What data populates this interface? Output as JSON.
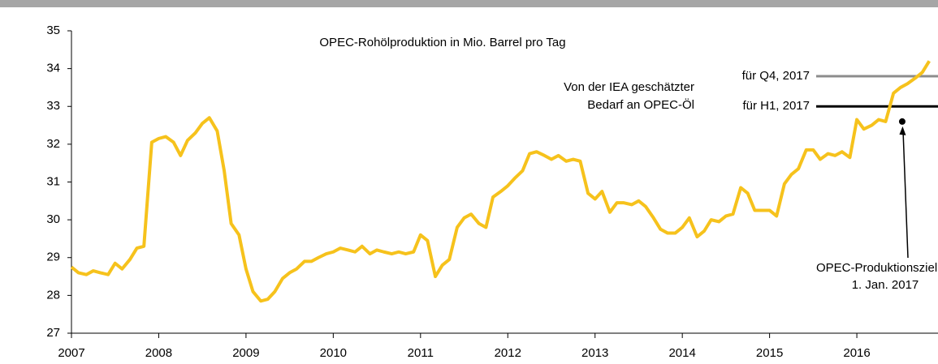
{
  "chart_data": {
    "type": "line",
    "title": "OPEC-Rohölproduktion in Mio. Barrel pro Tag",
    "xlim": [
      2007,
      2016.93
    ],
    "xticks": [
      2007,
      2008,
      2009,
      2010,
      2011,
      2012,
      2013,
      2014,
      2015,
      2016
    ],
    "ylim": [
      27,
      35
    ],
    "yticks": [
      27,
      28,
      29,
      30,
      31,
      32,
      33,
      34,
      35
    ],
    "series": [
      {
        "color": "#f6c21c",
        "x": [
          2007.0,
          2007.08,
          2007.17,
          2007.25,
          2007.33,
          2007.42,
          2007.5,
          2007.58,
          2007.67,
          2007.75,
          2007.83,
          2007.92,
          2008.0,
          2008.08,
          2008.17,
          2008.25,
          2008.33,
          2008.42,
          2008.5,
          2008.58,
          2008.67,
          2008.75,
          2008.83,
          2008.92,
          2009.0,
          2009.08,
          2009.17,
          2009.25,
          2009.33,
          2009.42,
          2009.5,
          2009.58,
          2009.67,
          2009.75,
          2009.83,
          2009.92,
          2010.0,
          2010.08,
          2010.17,
          2010.25,
          2010.33,
          2010.42,
          2010.5,
          2010.58,
          2010.67,
          2010.75,
          2010.83,
          2010.92,
          2011.0,
          2011.08,
          2011.17,
          2011.25,
          2011.33,
          2011.42,
          2011.5,
          2011.58,
          2011.67,
          2011.75,
          2011.83,
          2011.92,
          2012.0,
          2012.08,
          2012.17,
          2012.25,
          2012.33,
          2012.42,
          2012.5,
          2012.58,
          2012.67,
          2012.75,
          2012.83,
          2012.92,
          2013.0,
          2013.08,
          2013.17,
          2013.25,
          2013.33,
          2013.42,
          2013.5,
          2013.58,
          2013.67,
          2013.75,
          2013.83,
          2013.92,
          2014.0,
          2014.08,
          2014.17,
          2014.25,
          2014.33,
          2014.42,
          2014.5,
          2014.58,
          2014.67,
          2014.75,
          2014.83,
          2014.92,
          2015.0,
          2015.08,
          2015.17,
          2015.25,
          2015.33,
          2015.42,
          2015.5,
          2015.58,
          2015.67,
          2015.75,
          2015.83,
          2015.92,
          2016.0,
          2016.08,
          2016.17,
          2016.25,
          2016.33,
          2016.42,
          2016.5,
          2016.58,
          2016.67,
          2016.75,
          2016.83
        ],
        "values": [
          28.75,
          28.6,
          28.55,
          28.65,
          28.6,
          28.55,
          28.85,
          28.7,
          28.95,
          29.25,
          29.3,
          32.05,
          32.15,
          32.2,
          32.05,
          31.7,
          32.1,
          32.3,
          32.55,
          32.7,
          32.35,
          31.3,
          29.9,
          29.6,
          28.7,
          28.1,
          27.85,
          27.9,
          28.1,
          28.45,
          28.6,
          28.7,
          28.9,
          28.9,
          29.0,
          29.1,
          29.15,
          29.25,
          29.2,
          29.15,
          29.3,
          29.1,
          29.2,
          29.15,
          29.1,
          29.15,
          29.1,
          29.15,
          29.6,
          29.45,
          28.5,
          28.8,
          28.95,
          29.8,
          30.05,
          30.15,
          29.9,
          29.8,
          30.6,
          30.75,
          30.9,
          31.1,
          31.3,
          31.75,
          31.8,
          31.7,
          31.6,
          31.7,
          31.55,
          31.6,
          31.55,
          30.7,
          30.55,
          30.75,
          30.2,
          30.45,
          30.45,
          30.4,
          30.5,
          30.35,
          30.05,
          29.75,
          29.65,
          29.65,
          29.8,
          30.05,
          29.55,
          29.7,
          30.0,
          29.95,
          30.1,
          30.15,
          30.85,
          30.7,
          30.25,
          30.25,
          30.25,
          30.1,
          30.95,
          31.2,
          31.35,
          31.85,
          31.85,
          31.6,
          31.75,
          31.7,
          31.8,
          31.65,
          32.65,
          32.4,
          32.5,
          32.65,
          32.6,
          33.35,
          33.5,
          33.6,
          33.75,
          33.9,
          34.2
        ]
      }
    ],
    "hlines": [
      {
        "label": "für Q4, 2017",
        "value": 33.8,
        "color": "#8c8c8c"
      },
      {
        "label": "für H1, 2017",
        "value": 33.0,
        "color": "#000000"
      }
    ],
    "hlines_note": [
      "Von der IEA geschätzter",
      "Bedarf an OPEC-Öl"
    ],
    "target": {
      "x": 2016.52,
      "value": 32.6,
      "label": [
        "OPEC-Produktionsziel ab",
        "1. Jan. 2017"
      ]
    }
  }
}
